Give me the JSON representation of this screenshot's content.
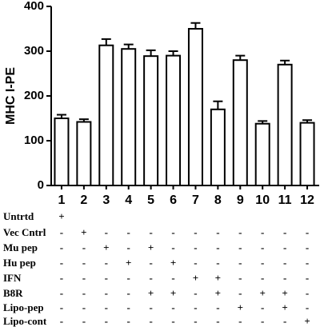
{
  "chart_data": {
    "type": "bar",
    "y_label": "MHC I-PE",
    "categories": [
      "1",
      "2",
      "3",
      "4",
      "5",
      "6",
      "7",
      "8",
      "9",
      "10",
      "11",
      "12"
    ],
    "values": [
      150,
      142,
      313,
      305,
      289,
      290,
      350,
      170,
      280,
      138,
      270,
      140
    ],
    "errors": [
      8,
      6,
      14,
      10,
      13,
      10,
      13,
      18,
      10,
      6,
      9,
      6
    ],
    "color": "#ffffff",
    "ylim": [
      0,
      400
    ],
    "yticks": [
      0,
      100,
      200,
      300,
      400
    ],
    "treatments": [
      {
        "name": "Untrtd",
        "marks": [
          "+",
          null,
          null,
          null,
          null,
          null,
          null,
          null,
          null,
          null,
          null,
          null
        ]
      },
      {
        "name": "Vec Cntrl",
        "marks": [
          "-",
          "+",
          "-",
          "-",
          "-",
          "-",
          "-",
          "-",
          "-",
          "-",
          "-",
          "-"
        ]
      },
      {
        "name": "Mu pep",
        "marks": [
          "-",
          "-",
          "+",
          "-",
          "+",
          "-",
          "-",
          "-",
          "-",
          "-",
          "-",
          "-"
        ]
      },
      {
        "name": "Hu pep",
        "marks": [
          "-",
          "-",
          "-",
          "+",
          "-",
          "+",
          "-",
          "-",
          "-",
          "-",
          "-",
          "-"
        ]
      },
      {
        "name": "IFN",
        "marks": [
          "-",
          "-",
          "-",
          "-",
          "-",
          "-",
          "+",
          "+",
          "-",
          "-",
          "-",
          "-"
        ]
      },
      {
        "name": "B8R",
        "marks": [
          "-",
          "-",
          "-",
          "-",
          "+",
          "+",
          "-",
          "+",
          "-",
          "+",
          "+",
          "-"
        ]
      },
      {
        "name": "Lipo-pep",
        "marks": [
          "-",
          "-",
          "-",
          "-",
          "-",
          "-",
          "-",
          "-",
          "+",
          "-",
          "+",
          "-"
        ]
      },
      {
        "name": "Lipo-cont",
        "marks": [
          "-",
          "-",
          "-",
          "-",
          "-",
          "-",
          "-",
          "-",
          "-",
          "-",
          "-",
          "+"
        ]
      }
    ]
  }
}
